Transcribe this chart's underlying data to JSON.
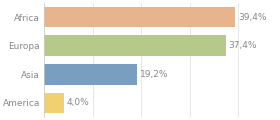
{
  "categories": [
    "Africa",
    "Europa",
    "Asia",
    "America"
  ],
  "values": [
    39.4,
    37.4,
    19.2,
    4.0
  ],
  "labels": [
    "39,4%",
    "37,4%",
    "19,2%",
    "4,0%"
  ],
  "bar_colors": [
    "#e8b48e",
    "#b5c98a",
    "#7a9ec0",
    "#f0d070"
  ],
  "background_color": "#ffffff",
  "xlim": [
    0,
    48
  ],
  "bar_height": 0.72,
  "label_fontsize": 6.5,
  "category_fontsize": 6.5,
  "text_color": "#888888"
}
